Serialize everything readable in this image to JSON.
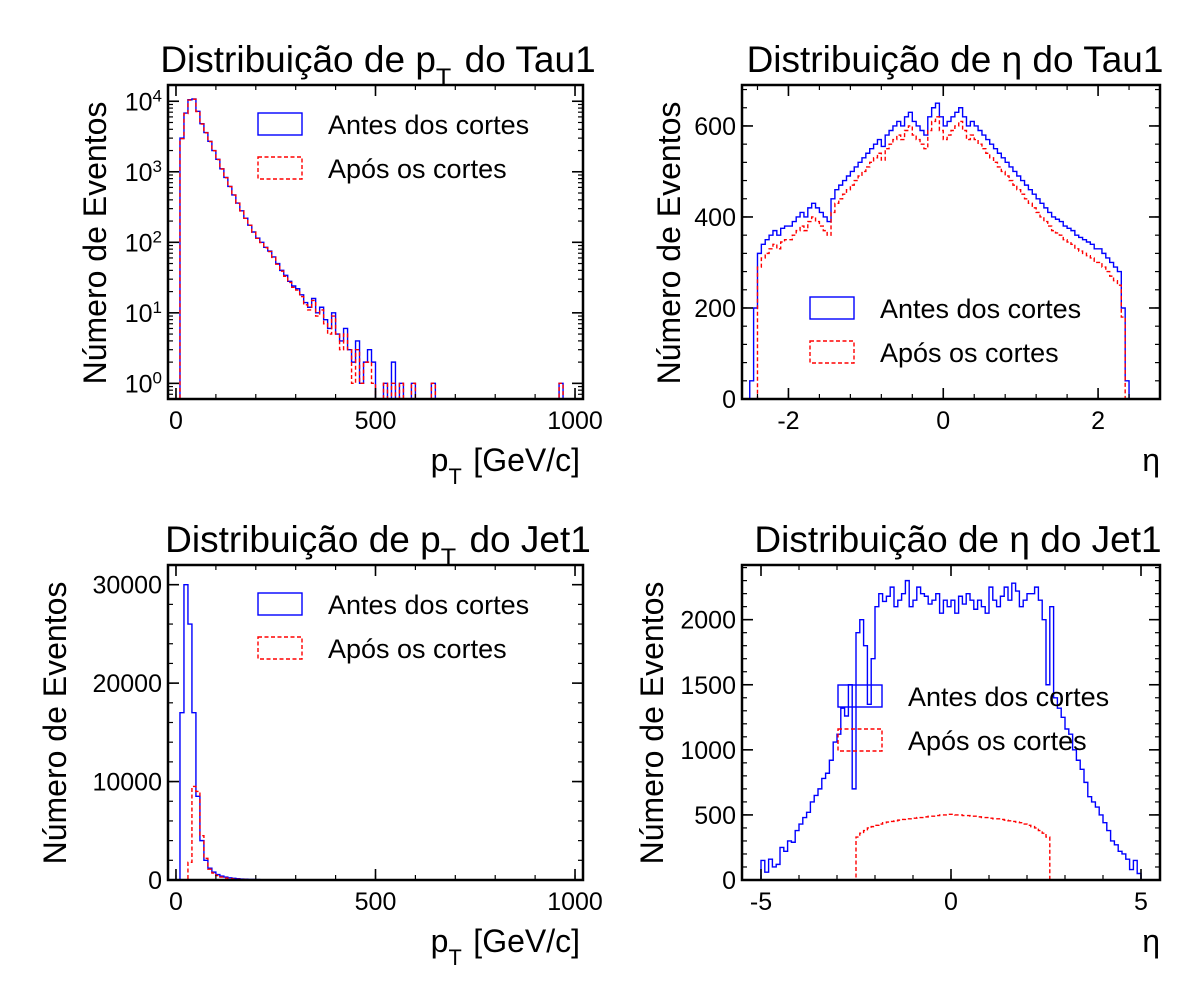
{
  "chart_data": [
    {
      "id": "tau_pt",
      "type": "histogram",
      "title": "Distribuição de p_T do Tau1",
      "xlabel": "p_T [GeV/c]",
      "ylabel": "Número de Eventos",
      "yscale": "log",
      "xlim": [
        -20,
        1020
      ],
      "ylim": [
        0.6,
        17000
      ],
      "xticks": [
        0,
        500,
        1000
      ],
      "yticks": [
        1,
        10,
        100,
        1000,
        10000
      ],
      "ytick_labels": [
        "10^0",
        "10^1",
        "10^2",
        "10^3",
        "10^4"
      ],
      "legend_position": "top-right",
      "bins": {
        "start": 0,
        "width": 10,
        "count": 100
      },
      "series": [
        {
          "name": "Antes dos cortes",
          "color": "#0000ff",
          "style": "solid",
          "values": [
            0,
            3000,
            6800,
            10500,
            10800,
            7200,
            4800,
            3600,
            2700,
            2000,
            1500,
            1100,
            830,
            620,
            470,
            360,
            280,
            220,
            175,
            140,
            115,
            100,
            85,
            75,
            62,
            50,
            40,
            34,
            28,
            24,
            22,
            18,
            14,
            12,
            16,
            10,
            12,
            8,
            6,
            10,
            5,
            4,
            6,
            3,
            2,
            4,
            1,
            2,
            3,
            2,
            0,
            0,
            1,
            0,
            2,
            0,
            1,
            0,
            0,
            1,
            0,
            0,
            0,
            0,
            1,
            0,
            0,
            0,
            0,
            0,
            0,
            0,
            0,
            0,
            0,
            0,
            0,
            0,
            0,
            0,
            0,
            0,
            0,
            0,
            0,
            0,
            0,
            0,
            0,
            0,
            0,
            0,
            0,
            0,
            0,
            0,
            1,
            0,
            0,
            0
          ]
        },
        {
          "name": "Após os cortes",
          "color": "#ff0000",
          "style": "dashed",
          "values": [
            0,
            2950,
            6700,
            10400,
            10700,
            7150,
            4760,
            3570,
            2680,
            1990,
            1490,
            1095,
            825,
            617,
            468,
            358,
            279,
            219,
            174,
            139,
            114,
            99,
            84,
            74,
            61,
            49,
            39,
            33,
            27,
            23,
            21,
            17,
            13,
            11,
            15,
            9,
            11,
            7,
            5,
            9,
            5,
            3,
            5,
            3,
            1,
            3,
            1,
            2,
            2,
            1,
            0,
            0,
            1,
            0,
            1,
            0,
            1,
            0,
            0,
            1,
            0,
            0,
            0,
            0,
            1,
            0,
            0,
            0,
            0,
            0,
            0,
            0,
            0,
            0,
            0,
            0,
            0,
            0,
            0,
            0,
            0,
            0,
            0,
            0,
            0,
            0,
            0,
            0,
            0,
            0,
            0,
            0,
            0,
            0,
            0,
            0,
            1,
            0,
            0,
            0
          ]
        }
      ]
    },
    {
      "id": "tau_eta",
      "type": "histogram",
      "title": "Distribuição de η do Tau1",
      "xlabel": "η",
      "ylabel": "Número de Eventos",
      "yscale": "linear",
      "xlim": [
        -2.6,
        2.8
      ],
      "ylim": [
        0,
        690
      ],
      "xticks": [
        -2,
        0,
        2
      ],
      "yticks": [
        0,
        200,
        400,
        600
      ],
      "legend_position": "bottom-center",
      "bins": {
        "start": -2.5,
        "width": 0.05,
        "count": 100
      },
      "series": [
        {
          "name": "Antes dos cortes",
          "color": "#0000ff",
          "style": "solid",
          "values": [
            40,
            200,
            320,
            340,
            350,
            360,
            370,
            360,
            375,
            380,
            380,
            390,
            400,
            410,
            400,
            420,
            430,
            420,
            410,
            400,
            390,
            440,
            460,
            470,
            480,
            490,
            500,
            510,
            520,
            530,
            540,
            550,
            560,
            570,
            555,
            580,
            590,
            600,
            610,
            600,
            620,
            630,
            610,
            600,
            590,
            580,
            620,
            640,
            650,
            620,
            600,
            610,
            620,
            630,
            640,
            620,
            600,
            610,
            600,
            590,
            580,
            570,
            560,
            550,
            540,
            530,
            520,
            510,
            500,
            490,
            480,
            470,
            460,
            450,
            440,
            430,
            420,
            410,
            400,
            395,
            390,
            380,
            375,
            370,
            360,
            355,
            350,
            345,
            340,
            330,
            330,
            320,
            310,
            300,
            290,
            280,
            200,
            40,
            0,
            0
          ]
        },
        {
          "name": "Após os cortes",
          "color": "#ff0000",
          "style": "dashed",
          "values": [
            0,
            0,
            290,
            310,
            320,
            330,
            340,
            330,
            345,
            350,
            350,
            360,
            370,
            380,
            370,
            390,
            400,
            390,
            380,
            370,
            360,
            410,
            430,
            440,
            450,
            460,
            470,
            480,
            490,
            500,
            510,
            520,
            530,
            540,
            525,
            550,
            560,
            570,
            580,
            570,
            590,
            600,
            580,
            570,
            560,
            550,
            590,
            610,
            620,
            590,
            570,
            580,
            590,
            600,
            610,
            590,
            570,
            580,
            570,
            560,
            550,
            540,
            530,
            520,
            510,
            500,
            490,
            480,
            470,
            460,
            450,
            440,
            430,
            420,
            410,
            400,
            390,
            380,
            370,
            365,
            360,
            350,
            345,
            340,
            330,
            325,
            320,
            315,
            310,
            300,
            300,
            290,
            280,
            270,
            260,
            250,
            180,
            0,
            0,
            0
          ]
        }
      ]
    },
    {
      "id": "jet_pt",
      "type": "histogram",
      "title": "Distribuição de p_T do Jet1",
      "xlabel": "p_T [GeV/c]",
      "ylabel": "Número de Eventos",
      "yscale": "linear",
      "xlim": [
        -20,
        1020
      ],
      "ylim": [
        0,
        32000
      ],
      "xticks": [
        0,
        500,
        1000
      ],
      "yticks": [
        0,
        10000,
        20000,
        30000
      ],
      "legend_position": "top-right",
      "bins": {
        "start": 0,
        "width": 10,
        "count": 100
      },
      "series": [
        {
          "name": "Antes dos cortes",
          "color": "#0000ff",
          "style": "solid",
          "values": [
            0,
            17000,
            30000,
            26000,
            17000,
            8500,
            4000,
            2000,
            1200,
            800,
            550,
            400,
            300,
            220,
            170,
            130,
            100,
            80,
            60,
            50,
            40,
            30,
            25,
            20,
            15,
            12,
            10,
            8,
            6,
            5,
            4,
            3,
            3,
            2,
            2,
            1,
            1,
            1,
            1,
            1,
            0,
            0,
            0,
            0,
            0,
            0,
            0,
            0,
            0,
            0,
            0,
            0,
            0,
            0,
            0,
            0,
            0,
            0,
            0,
            0,
            0,
            0,
            0,
            0,
            0,
            0,
            0,
            0,
            0,
            0,
            0,
            0,
            0,
            0,
            0,
            0,
            0,
            0,
            0,
            0,
            0,
            0,
            0,
            0,
            0,
            0,
            0,
            0,
            0,
            0,
            0,
            0,
            0,
            0,
            0,
            0,
            0,
            0,
            0,
            0
          ]
        },
        {
          "name": "Após os cortes",
          "color": "#ff0000",
          "style": "dashed",
          "values": [
            0,
            0,
            0,
            1800,
            9500,
            9000,
            4500,
            2200,
            1100,
            700,
            450,
            300,
            200,
            150,
            110,
            80,
            60,
            45,
            35,
            25,
            20,
            15,
            12,
            10,
            8,
            6,
            5,
            4,
            3,
            3,
            2,
            2,
            1,
            1,
            1,
            1,
            0,
            0,
            0,
            0,
            0,
            0,
            0,
            0,
            0,
            0,
            0,
            0,
            0,
            0,
            0,
            0,
            0,
            0,
            0,
            0,
            0,
            0,
            0,
            0,
            0,
            0,
            0,
            0,
            0,
            0,
            0,
            0,
            0,
            0,
            0,
            0,
            0,
            0,
            0,
            0,
            0,
            0,
            0,
            0,
            0,
            0,
            0,
            0,
            0,
            0,
            0,
            0,
            0,
            0,
            0,
            0,
            0,
            0,
            0,
            0,
            0,
            0,
            0,
            0
          ]
        }
      ]
    },
    {
      "id": "jet_eta",
      "type": "histogram",
      "title": "Distribuição de η do Jet1",
      "xlabel": "η",
      "ylabel": "Número de Eventos",
      "yscale": "linear",
      "xlim": [
        -5.5,
        5.5
      ],
      "ylim": [
        0,
        2420
      ],
      "xticks": [
        -5,
        0,
        5
      ],
      "yticks": [
        0,
        500,
        1000,
        1500,
        2000
      ],
      "legend_position": "center-right",
      "bins": {
        "start": -5,
        "width": 0.1,
        "count": 100
      },
      "series": [
        {
          "name": "Antes dos cortes",
          "color": "#0000ff",
          "style": "solid",
          "values": [
            150,
            60,
            160,
            100,
            120,
            250,
            220,
            300,
            290,
            380,
            430,
            480,
            520,
            600,
            650,
            700,
            780,
            820,
            920,
            1060,
            1120,
            1320,
            1260,
            1500,
            700,
            1900,
            2000,
            1800,
            1350,
            1700,
            2100,
            2200,
            2140,
            2180,
            2250,
            2100,
            2150,
            2200,
            2300,
            2100,
            2150,
            2250,
            2200,
            2180,
            2120,
            2150,
            2200,
            2050,
            2150,
            2100,
            2150,
            2050,
            2180,
            2120,
            2200,
            2150,
            2080,
            2150,
            2100,
            2050,
            2250,
            2150,
            2100,
            2180,
            2250,
            2150,
            2280,
            2220,
            2100,
            2150,
            2200,
            2200,
            2250,
            2150,
            2000,
            1500,
            2100,
            1400,
            1320,
            1250,
            1160,
            1120,
            1000,
            920,
            850,
            750,
            640,
            600,
            560,
            500,
            440,
            380,
            300,
            270,
            220,
            200,
            160,
            80,
            150,
            50
          ]
        },
        {
          "name": "Após os cortes",
          "color": "#ff0000",
          "style": "dashed",
          "values": [
            0,
            0,
            0,
            0,
            0,
            0,
            0,
            0,
            0,
            0,
            0,
            0,
            0,
            0,
            0,
            0,
            0,
            0,
            0,
            0,
            0,
            0,
            0,
            0,
            0,
            330,
            360,
            380,
            400,
            410,
            420,
            430,
            440,
            445,
            450,
            455,
            460,
            465,
            470,
            470,
            475,
            480,
            480,
            485,
            490,
            490,
            495,
            500,
            500,
            505,
            505,
            500,
            500,
            495,
            495,
            490,
            490,
            485,
            480,
            480,
            475,
            470,
            470,
            465,
            460,
            455,
            450,
            445,
            440,
            430,
            420,
            410,
            400,
            380,
            360,
            330,
            0,
            0,
            0,
            0,
            0,
            0,
            0,
            0,
            0,
            0,
            0,
            0,
            0,
            0,
            0,
            0,
            0,
            0,
            0,
            0,
            0,
            0,
            0,
            0
          ]
        }
      ]
    }
  ]
}
